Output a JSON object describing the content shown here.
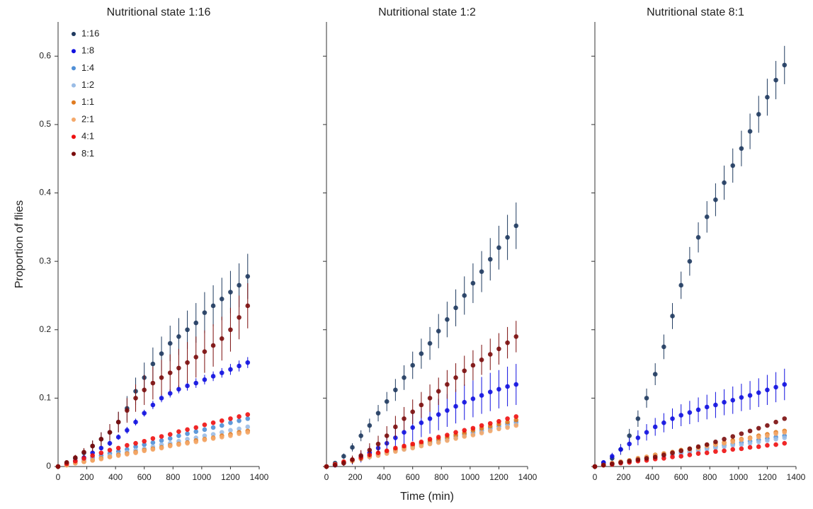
{
  "chart_data": [
    {
      "type": "scatter",
      "title": "Nutritional state 1:16",
      "y_label": "Proportion of flies",
      "x": [
        0,
        60,
        120,
        180,
        240,
        300,
        360,
        420,
        480,
        540,
        600,
        660,
        720,
        780,
        840,
        900,
        960,
        1020,
        1080,
        1140,
        1200,
        1260,
        1320
      ],
      "xlim": [
        0,
        1400
      ],
      "xticks": [
        0,
        200,
        400,
        600,
        800,
        1000,
        1200,
        1400
      ],
      "ylim": [
        0,
        0.65
      ],
      "yticks": [
        0,
        0.1,
        0.2,
        0.3,
        0.4,
        0.5,
        0.6
      ],
      "series": [
        {
          "name": "1:16",
          "color": "#1f3a5f",
          "values": [
            0,
            0.005,
            0.012,
            0.02,
            0.03,
            0.04,
            0.05,
            0.065,
            0.085,
            0.11,
            0.13,
            0.15,
            0.165,
            0.18,
            0.19,
            0.2,
            0.21,
            0.225,
            0.235,
            0.245,
            0.255,
            0.265,
            0.278
          ],
          "errors": [
            0,
            0.002,
            0.004,
            0.006,
            0.008,
            0.01,
            0.012,
            0.015,
            0.018,
            0.02,
            0.022,
            0.024,
            0.025,
            0.026,
            0.027,
            0.028,
            0.029,
            0.03,
            0.03,
            0.031,
            0.031,
            0.032,
            0.033
          ]
        },
        {
          "name": "1:8",
          "color": "#1010e0",
          "values": [
            0,
            0.003,
            0.008,
            0.013,
            0.02,
            0.027,
            0.034,
            0.043,
            0.053,
            0.065,
            0.078,
            0.09,
            0.1,
            0.107,
            0.113,
            0.118,
            0.122,
            0.127,
            0.132,
            0.137,
            0.142,
            0.147,
            0.152
          ],
          "errors": [
            0,
            0.001,
            0.002,
            0.002,
            0.003,
            0.003,
            0.004,
            0.004,
            0.005,
            0.005,
            0.005,
            0.006,
            0.006,
            0.006,
            0.006,
            0.007,
            0.007,
            0.007,
            0.007,
            0.007,
            0.008,
            0.008,
            0.008
          ]
        },
        {
          "name": "1:4",
          "color": "#4f8fd6",
          "values": [
            0,
            0.003,
            0.006,
            0.01,
            0.013,
            0.016,
            0.019,
            0.022,
            0.025,
            0.029,
            0.032,
            0.035,
            0.038,
            0.041,
            0.045,
            0.048,
            0.051,
            0.054,
            0.057,
            0.06,
            0.064,
            0.067,
            0.07
          ]
        },
        {
          "name": "1:2",
          "color": "#9bbde6",
          "values": [
            0,
            0.003,
            0.005,
            0.008,
            0.011,
            0.013,
            0.016,
            0.018,
            0.021,
            0.024,
            0.026,
            0.029,
            0.032,
            0.034,
            0.037,
            0.04,
            0.042,
            0.045,
            0.047,
            0.05,
            0.053,
            0.055,
            0.058
          ]
        },
        {
          "name": "1:1",
          "color": "#e07b20",
          "values": [
            0,
            0.002,
            0.005,
            0.007,
            0.009,
            0.012,
            0.014,
            0.017,
            0.019,
            0.021,
            0.024,
            0.026,
            0.028,
            0.031,
            0.033,
            0.035,
            0.038,
            0.04,
            0.042,
            0.045,
            0.047,
            0.05,
            0.052
          ]
        },
        {
          "name": "2:1",
          "color": "#f4a86a",
          "values": [
            0,
            0.002,
            0.005,
            0.007,
            0.009,
            0.011,
            0.014,
            0.016,
            0.018,
            0.02,
            0.023,
            0.025,
            0.027,
            0.03,
            0.032,
            0.034,
            0.036,
            0.039,
            0.041,
            0.043,
            0.045,
            0.048,
            0.05
          ]
        },
        {
          "name": "4:1",
          "color": "#ee1010",
          "values": [
            0,
            0.004,
            0.008,
            0.012,
            0.016,
            0.02,
            0.024,
            0.027,
            0.031,
            0.034,
            0.037,
            0.041,
            0.044,
            0.047,
            0.051,
            0.054,
            0.057,
            0.061,
            0.064,
            0.067,
            0.07,
            0.073,
            0.076
          ]
        },
        {
          "name": "8:1",
          "color": "#7a0c0c",
          "values": [
            0,
            0.006,
            0.013,
            0.021,
            0.03,
            0.04,
            0.05,
            0.065,
            0.082,
            0.1,
            0.112,
            0.122,
            0.13,
            0.137,
            0.144,
            0.152,
            0.16,
            0.168,
            0.177,
            0.187,
            0.2,
            0.218,
            0.235
          ],
          "errors": [
            0,
            0.002,
            0.004,
            0.006,
            0.008,
            0.01,
            0.012,
            0.015,
            0.018,
            0.02,
            0.022,
            0.024,
            0.026,
            0.027,
            0.028,
            0.03,
            0.03,
            0.031,
            0.031,
            0.032,
            0.032,
            0.032,
            0.033
          ]
        }
      ]
    },
    {
      "type": "scatter",
      "title": "Nutritional state 1:2",
      "x_label": "Time (min)",
      "x": [
        0,
        60,
        120,
        180,
        240,
        300,
        360,
        420,
        480,
        540,
        600,
        660,
        720,
        780,
        840,
        900,
        960,
        1020,
        1080,
        1140,
        1200,
        1260,
        1320
      ],
      "xlim": [
        0,
        1400
      ],
      "xticks": [
        0,
        200,
        400,
        600,
        800,
        1000,
        1200,
        1400
      ],
      "ylim": [
        0,
        0.65
      ],
      "yticks": [
        0,
        0.1,
        0.2,
        0.3,
        0.4,
        0.5,
        0.6
      ],
      "series": [
        {
          "color": "#1f3a5f",
          "values": [
            0,
            0.005,
            0.015,
            0.028,
            0.045,
            0.06,
            0.078,
            0.095,
            0.112,
            0.13,
            0.148,
            0.165,
            0.18,
            0.198,
            0.215,
            0.232,
            0.25,
            0.268,
            0.285,
            0.303,
            0.32,
            0.335,
            0.352
          ],
          "errors": [
            0,
            0.002,
            0.004,
            0.006,
            0.008,
            0.01,
            0.012,
            0.014,
            0.016,
            0.018,
            0.02,
            0.022,
            0.024,
            0.025,
            0.026,
            0.027,
            0.028,
            0.029,
            0.03,
            0.031,
            0.032,
            0.033,
            0.034
          ]
        },
        {
          "color": "#1010e0",
          "values": [
            0,
            0.002,
            0.005,
            0.009,
            0.014,
            0.02,
            0.027,
            0.034,
            0.042,
            0.05,
            0.057,
            0.064,
            0.07,
            0.076,
            0.082,
            0.088,
            0.094,
            0.099,
            0.104,
            0.109,
            0.113,
            0.117,
            0.12
          ],
          "errors": [
            0,
            0.002,
            0.004,
            0.006,
            0.008,
            0.01,
            0.012,
            0.014,
            0.016,
            0.018,
            0.02,
            0.021,
            0.022,
            0.023,
            0.024,
            0.025,
            0.026,
            0.027,
            0.027,
            0.028,
            0.028,
            0.029,
            0.03
          ]
        },
        {
          "color": "#4f8fd6",
          "values": [
            0,
            0.003,
            0.006,
            0.009,
            0.012,
            0.015,
            0.018,
            0.021,
            0.024,
            0.027,
            0.03,
            0.033,
            0.035,
            0.038,
            0.041,
            0.044,
            0.047,
            0.05,
            0.053,
            0.056,
            0.059,
            0.062,
            0.065
          ]
        },
        {
          "color": "#9bbde6",
          "values": [
            0,
            0.003,
            0.006,
            0.008,
            0.011,
            0.014,
            0.017,
            0.02,
            0.023,
            0.025,
            0.028,
            0.031,
            0.034,
            0.037,
            0.039,
            0.042,
            0.045,
            0.048,
            0.051,
            0.054,
            0.056,
            0.059,
            0.062
          ]
        },
        {
          "color": "#e07b20",
          "values": [
            0,
            0.003,
            0.006,
            0.009,
            0.012,
            0.015,
            0.019,
            0.022,
            0.025,
            0.028,
            0.031,
            0.034,
            0.037,
            0.04,
            0.043,
            0.046,
            0.049,
            0.053,
            0.056,
            0.059,
            0.062,
            0.065,
            0.068
          ]
        },
        {
          "color": "#f4a86a",
          "values": [
            0,
            0.003,
            0.005,
            0.008,
            0.011,
            0.014,
            0.016,
            0.019,
            0.022,
            0.025,
            0.027,
            0.03,
            0.033,
            0.035,
            0.038,
            0.041,
            0.044,
            0.046,
            0.049,
            0.052,
            0.055,
            0.057,
            0.06
          ]
        },
        {
          "color": "#ee1010",
          "values": [
            0,
            0.003,
            0.007,
            0.01,
            0.013,
            0.017,
            0.02,
            0.023,
            0.027,
            0.03,
            0.033,
            0.036,
            0.04,
            0.043,
            0.046,
            0.05,
            0.053,
            0.056,
            0.06,
            0.063,
            0.066,
            0.07,
            0.073
          ]
        },
        {
          "color": "#7a0c0c",
          "values": [
            0,
            0.002,
            0.005,
            0.01,
            0.016,
            0.024,
            0.033,
            0.045,
            0.058,
            0.07,
            0.08,
            0.09,
            0.1,
            0.11,
            0.12,
            0.13,
            0.14,
            0.148,
            0.156,
            0.164,
            0.172,
            0.181,
            0.19
          ],
          "errors": [
            0,
            0.002,
            0.004,
            0.006,
            0.008,
            0.01,
            0.012,
            0.014,
            0.016,
            0.017,
            0.018,
            0.019,
            0.02,
            0.02,
            0.021,
            0.021,
            0.022,
            0.022,
            0.022,
            0.023,
            0.023,
            0.023,
            0.023
          ]
        }
      ]
    },
    {
      "type": "scatter",
      "title": "Nutritional state 8:1",
      "x": [
        0,
        60,
        120,
        180,
        240,
        300,
        360,
        420,
        480,
        540,
        600,
        660,
        720,
        780,
        840,
        900,
        960,
        1020,
        1080,
        1140,
        1200,
        1260,
        1320
      ],
      "xlim": [
        0,
        1400
      ],
      "xticks": [
        0,
        200,
        400,
        600,
        800,
        1000,
        1200,
        1400
      ],
      "ylim": [
        0,
        0.65
      ],
      "yticks": [
        0,
        0.1,
        0.2,
        0.3,
        0.4,
        0.5,
        0.6
      ],
      "series": [
        {
          "color": "#1f3a5f",
          "values": [
            0,
            0.005,
            0.012,
            0.025,
            0.045,
            0.07,
            0.1,
            0.135,
            0.175,
            0.22,
            0.265,
            0.3,
            0.335,
            0.365,
            0.39,
            0.415,
            0.44,
            0.465,
            0.49,
            0.515,
            0.54,
            0.565,
            0.587
          ],
          "errors": [
            0,
            0.003,
            0.005,
            0.008,
            0.01,
            0.012,
            0.014,
            0.016,
            0.018,
            0.019,
            0.02,
            0.021,
            0.022,
            0.023,
            0.024,
            0.025,
            0.025,
            0.026,
            0.026,
            0.027,
            0.027,
            0.028,
            0.028
          ]
        },
        {
          "color": "#1010e0",
          "values": [
            0,
            0.006,
            0.015,
            0.025,
            0.033,
            0.042,
            0.05,
            0.058,
            0.064,
            0.07,
            0.075,
            0.079,
            0.083,
            0.087,
            0.09,
            0.094,
            0.097,
            0.101,
            0.104,
            0.108,
            0.112,
            0.116,
            0.12
          ],
          "errors": [
            0,
            0.003,
            0.005,
            0.007,
            0.009,
            0.011,
            0.012,
            0.013,
            0.014,
            0.015,
            0.016,
            0.017,
            0.018,
            0.018,
            0.019,
            0.019,
            0.02,
            0.02,
            0.021,
            0.021,
            0.022,
            0.022,
            0.023
          ]
        },
        {
          "color": "#4f8fd6",
          "values": [
            0,
            0.002,
            0.004,
            0.006,
            0.008,
            0.01,
            0.012,
            0.014,
            0.016,
            0.018,
            0.02,
            0.022,
            0.025,
            0.027,
            0.029,
            0.031,
            0.033,
            0.035,
            0.037,
            0.039,
            0.041,
            0.043,
            0.045
          ]
        },
        {
          "color": "#9bbde6",
          "values": [
            0,
            0.002,
            0.004,
            0.006,
            0.008,
            0.01,
            0.011,
            0.013,
            0.015,
            0.017,
            0.019,
            0.021,
            0.023,
            0.025,
            0.027,
            0.029,
            0.031,
            0.032,
            0.034,
            0.036,
            0.038,
            0.04,
            0.042
          ]
        },
        {
          "color": "#e07b20",
          "values": [
            0,
            0.002,
            0.005,
            0.007,
            0.009,
            0.012,
            0.014,
            0.017,
            0.019,
            0.021,
            0.024,
            0.026,
            0.028,
            0.031,
            0.033,
            0.035,
            0.038,
            0.04,
            0.042,
            0.045,
            0.047,
            0.05,
            0.052
          ]
        },
        {
          "color": "#f4a86a",
          "values": [
            0,
            0.002,
            0.005,
            0.007,
            0.009,
            0.011,
            0.014,
            0.016,
            0.018,
            0.02,
            0.023,
            0.025,
            0.027,
            0.03,
            0.032,
            0.034,
            0.036,
            0.039,
            0.041,
            0.043,
            0.045,
            0.048,
            0.05
          ]
        },
        {
          "color": "#ee1010",
          "values": [
            0,
            0.002,
            0.003,
            0.005,
            0.006,
            0.008,
            0.009,
            0.011,
            0.012,
            0.014,
            0.015,
            0.017,
            0.019,
            0.02,
            0.022,
            0.023,
            0.025,
            0.026,
            0.028,
            0.029,
            0.031,
            0.032,
            0.034
          ]
        },
        {
          "color": "#7a0c0c",
          "values": [
            0,
            0.002,
            0.004,
            0.006,
            0.008,
            0.01,
            0.012,
            0.014,
            0.017,
            0.02,
            0.023,
            0.026,
            0.029,
            0.032,
            0.036,
            0.04,
            0.044,
            0.048,
            0.052,
            0.056,
            0.06,
            0.065,
            0.07
          ]
        }
      ]
    }
  ]
}
